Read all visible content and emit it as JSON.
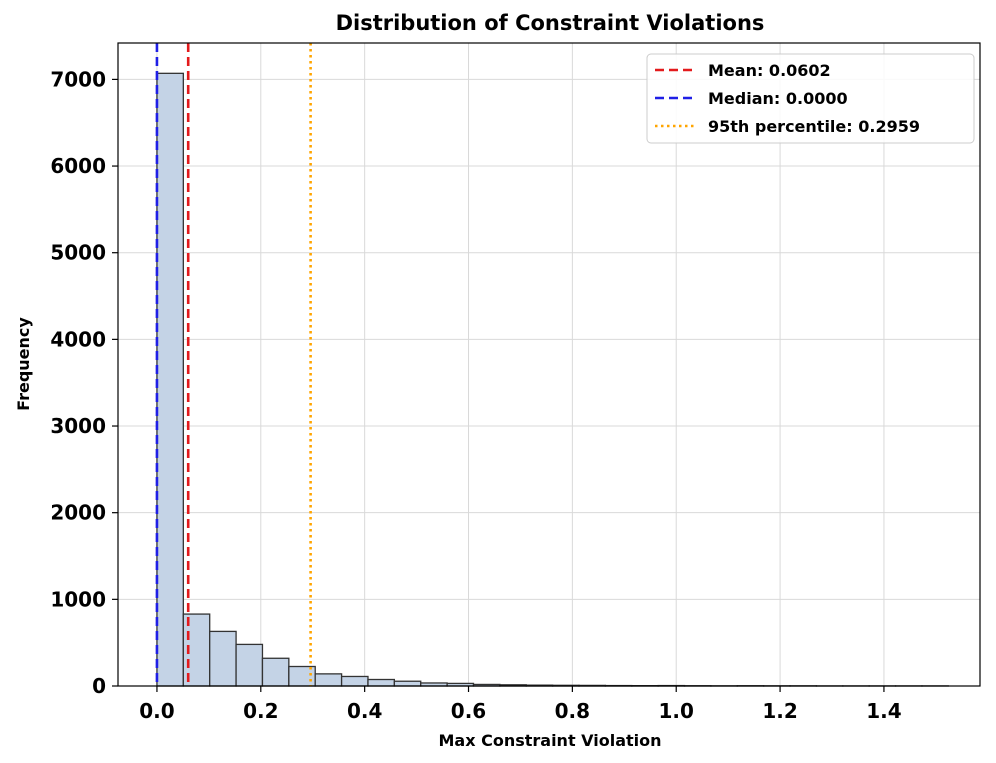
{
  "chart_data": {
    "type": "bar",
    "title": "Distribution of Constraint Violations",
    "xlabel": "Max Constraint Violation",
    "ylabel": "Frequency",
    "xlim": [
      -0.075,
      1.585
    ],
    "ylim": [
      0,
      7420
    ],
    "x_ticks": [
      0.0,
      0.2,
      0.4,
      0.6,
      0.8,
      1.0,
      1.2,
      1.4
    ],
    "x_tick_labels": [
      "0.0",
      "0.2",
      "0.4",
      "0.6",
      "0.8",
      "1.0",
      "1.2",
      "1.4"
    ],
    "y_ticks": [
      0,
      1000,
      2000,
      3000,
      4000,
      5000,
      6000,
      7000
    ],
    "y_tick_labels": [
      "0",
      "1000",
      "2000",
      "3000",
      "4000",
      "5000",
      "6000",
      "7000"
    ],
    "grid": true,
    "bin_width": 0.0508,
    "bins": [
      {
        "start": 0.0,
        "count": 7070
      },
      {
        "start": 0.0508,
        "count": 830
      },
      {
        "start": 0.1016,
        "count": 630
      },
      {
        "start": 0.1524,
        "count": 480
      },
      {
        "start": 0.2032,
        "count": 320
      },
      {
        "start": 0.254,
        "count": 225
      },
      {
        "start": 0.3048,
        "count": 140
      },
      {
        "start": 0.3556,
        "count": 110
      },
      {
        "start": 0.4064,
        "count": 75
      },
      {
        "start": 0.4572,
        "count": 55
      },
      {
        "start": 0.508,
        "count": 35
      },
      {
        "start": 0.5588,
        "count": 30
      },
      {
        "start": 0.6096,
        "count": 18
      },
      {
        "start": 0.6604,
        "count": 14
      },
      {
        "start": 0.7112,
        "count": 10
      },
      {
        "start": 0.762,
        "count": 8
      },
      {
        "start": 0.8128,
        "count": 7
      },
      {
        "start": 0.8636,
        "count": 5
      },
      {
        "start": 0.9144,
        "count": 4
      },
      {
        "start": 0.9652,
        "count": 5
      },
      {
        "start": 1.016,
        "count": 3
      },
      {
        "start": 1.0668,
        "count": 2
      },
      {
        "start": 1.1176,
        "count": 3
      },
      {
        "start": 1.1684,
        "count": 2
      },
      {
        "start": 1.2192,
        "count": 2
      },
      {
        "start": 1.27,
        "count": 1
      },
      {
        "start": 1.3208,
        "count": 1
      },
      {
        "start": 1.3716,
        "count": 1
      },
      {
        "start": 1.4224,
        "count": 1
      },
      {
        "start": 1.4732,
        "count": 1
      }
    ],
    "reference_lines": [
      {
        "label": "Mean: 0.0602",
        "value": 0.0602,
        "color": "#e31a1c",
        "style": "dashed"
      },
      {
        "label": "Median: 0.0000",
        "value": 0.0,
        "color": "#1f1fe6",
        "style": "dashed"
      },
      {
        "label": "95th percentile: 0.2959",
        "value": 0.2959,
        "color": "#ffa500",
        "style": "dotted"
      }
    ],
    "legend": "top-right",
    "bar_color": "#c4d3e6",
    "bar_edge_color": "#333333"
  }
}
